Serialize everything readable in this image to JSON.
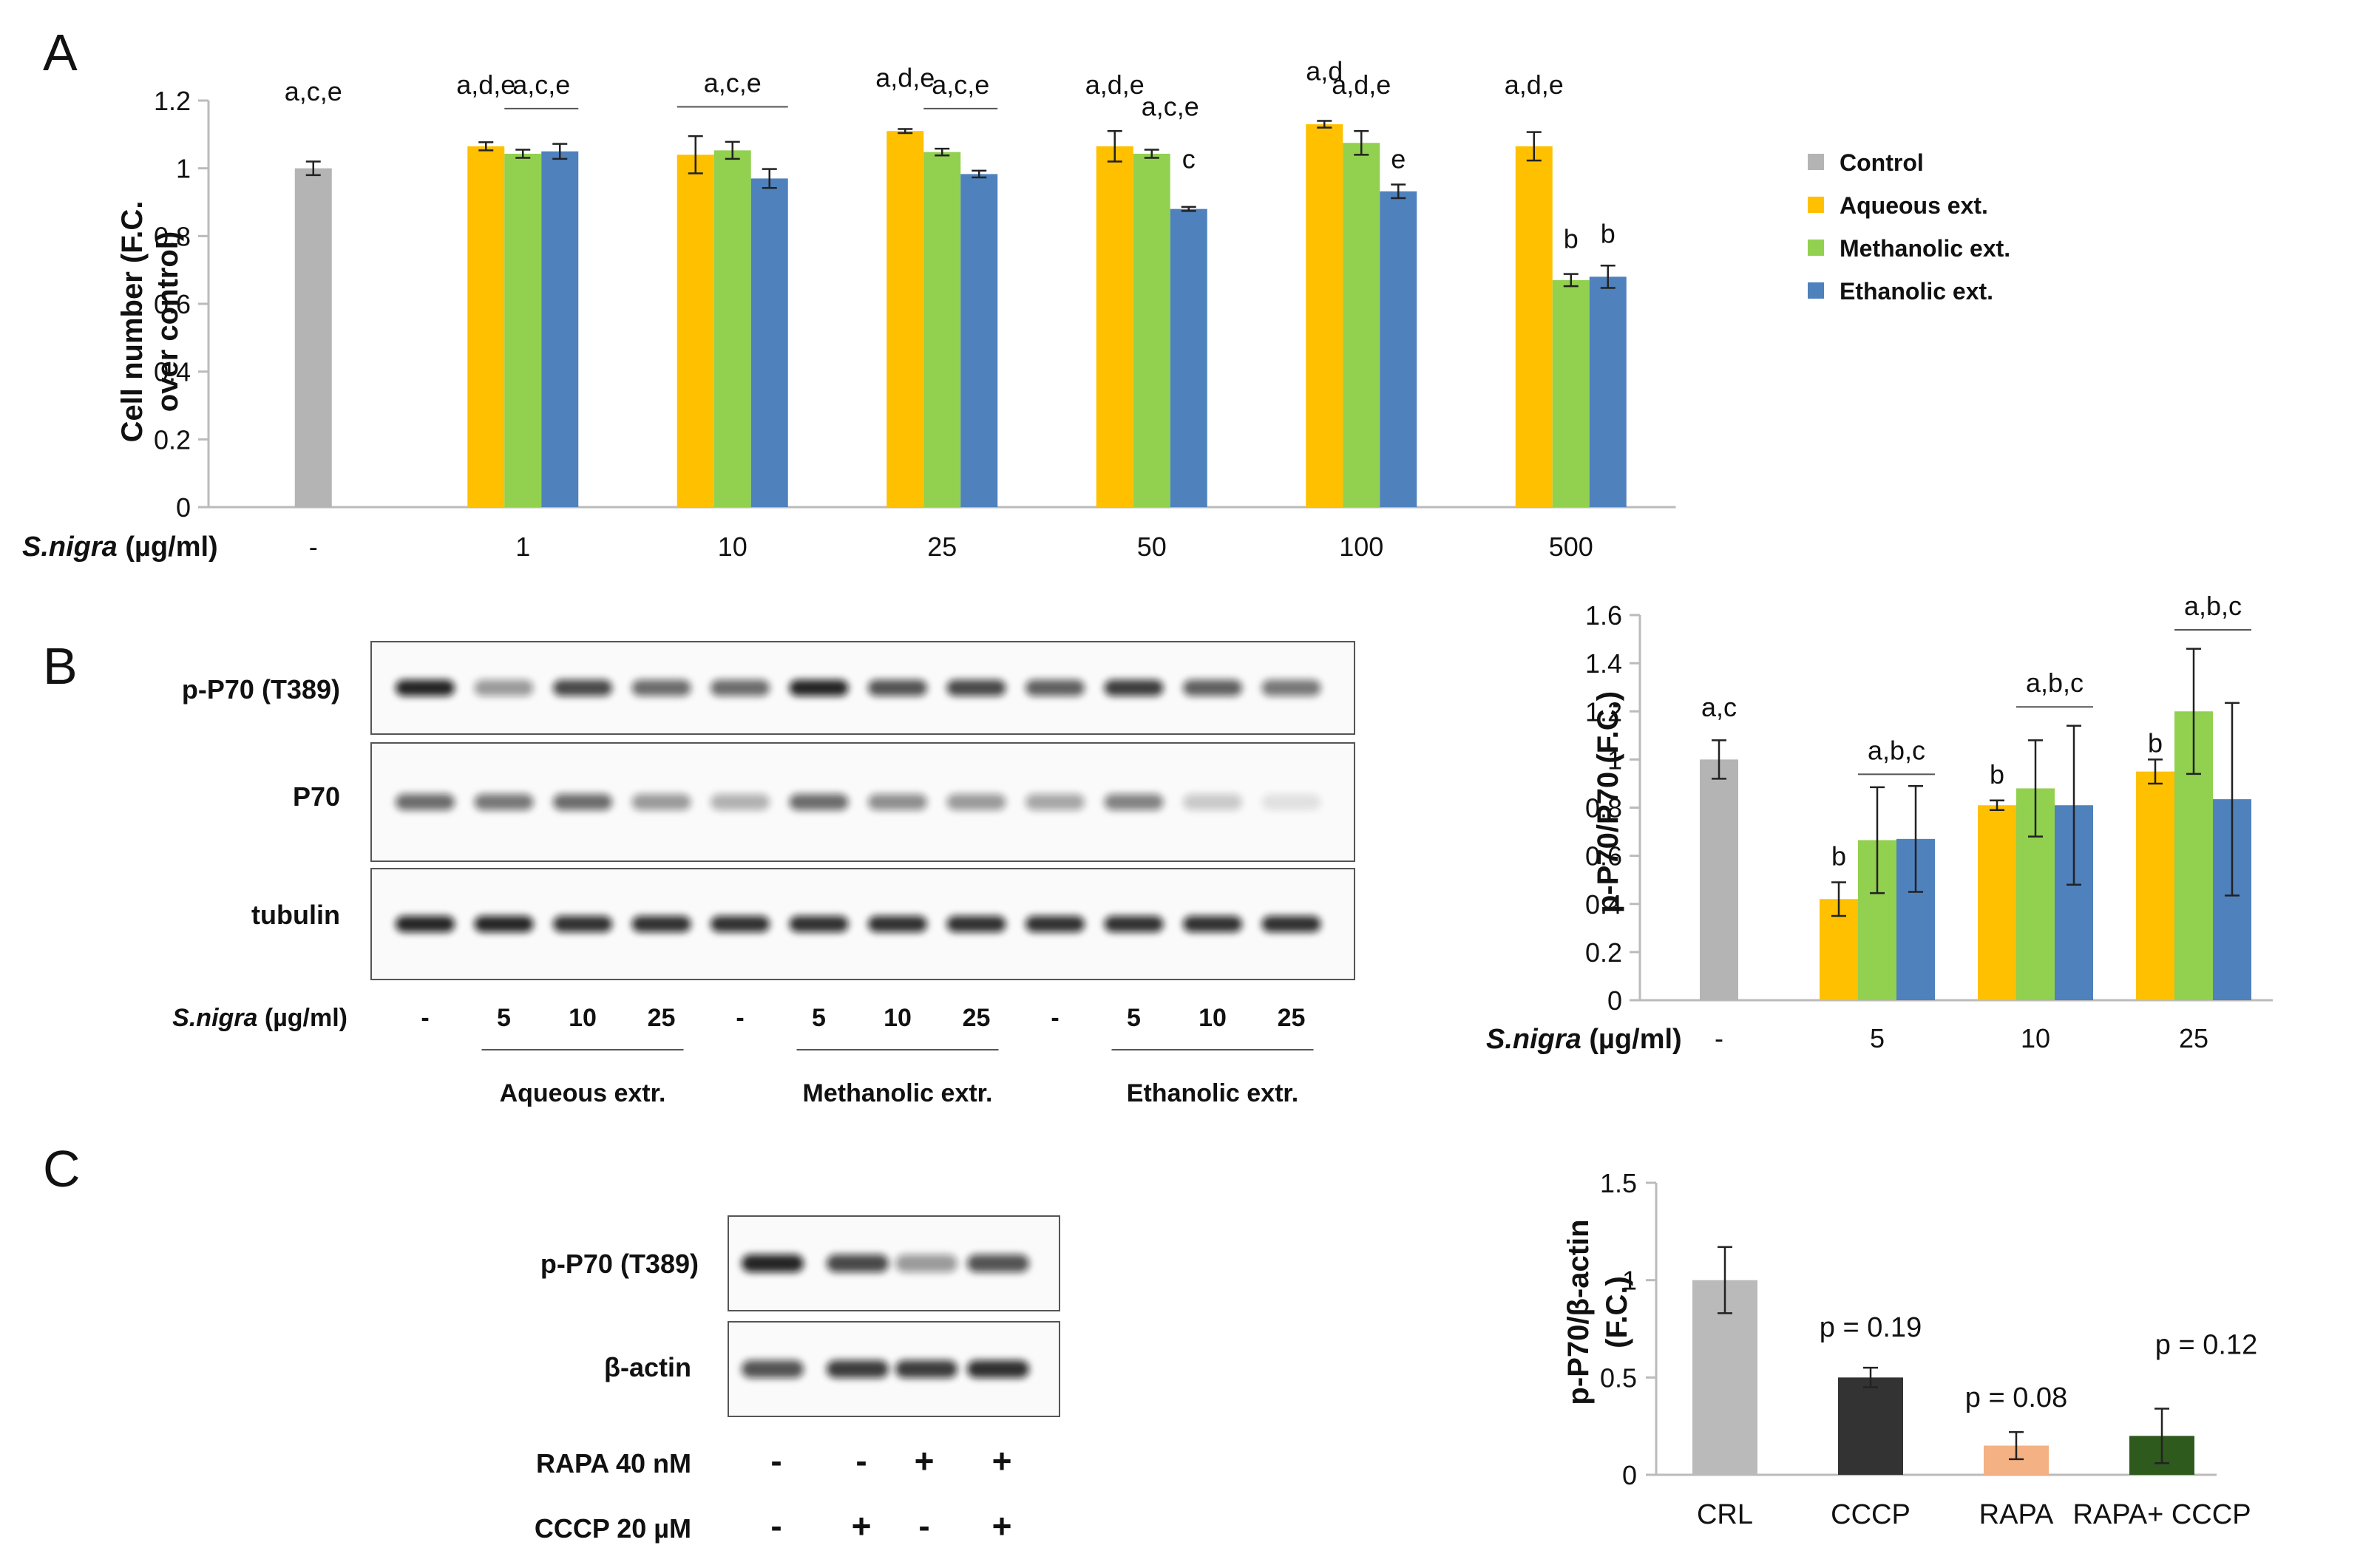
{
  "colors": {
    "control": "#b4b4b4",
    "aqueous": "#ffc000",
    "methanolic": "#92d050",
    "ethanolic": "#4f81bd",
    "crl": "#bababa",
    "cccp": "#333333",
    "rapa": "#f4b183",
    "rapa_cccp": "#2f5a1e"
  },
  "panels": {
    "a": "A",
    "b": "B",
    "c": "C"
  },
  "chart_data": [
    {
      "id": "A",
      "type": "bar",
      "ylabel_line1": "Cell number (F.C.",
      "ylabel_line2": "over control)",
      "xlabel_species": "S.nigra",
      "xlabel_unit": " (µg/ml)",
      "ylim": [
        0,
        1.2
      ],
      "yticks": [
        "0",
        "0.2",
        "0.4",
        "0.6",
        "0.8",
        "1",
        "1.2"
      ],
      "categories": [
        "-",
        "1",
        "10",
        "25",
        "50",
        "100",
        "500"
      ],
      "legend": [
        "Control",
        "Aqueous ext.",
        "Methanolic ext.",
        "Ethanolic ext."
      ],
      "series": [
        {
          "name": "Control",
          "color_key": "control",
          "values": [
            1.0,
            null,
            null,
            null,
            null,
            null,
            null
          ],
          "errors": [
            0.02,
            null,
            null,
            null,
            null,
            null,
            null
          ]
        },
        {
          "name": "Aqueous ext.",
          "color_key": "aqueous",
          "values": [
            null,
            1.065,
            1.04,
            1.11,
            1.065,
            1.13,
            1.065
          ],
          "errors": [
            null,
            0.012,
            0.055,
            0.006,
            0.045,
            0.01,
            0.042
          ]
        },
        {
          "name": "Methanolic ext.",
          "color_key": "methanolic",
          "values": [
            null,
            1.043,
            1.053,
            1.048,
            1.043,
            1.075,
            0.67
          ],
          "errors": [
            null,
            0.012,
            0.025,
            0.01,
            0.012,
            0.035,
            0.018
          ]
        },
        {
          "name": "Ethanolic ext.",
          "color_key": "ethanolic",
          "values": [
            null,
            1.05,
            0.97,
            0.983,
            0.88,
            0.932,
            0.68
          ],
          "errors": [
            null,
            0.022,
            0.028,
            0.01,
            0.006,
            0.02,
            0.033
          ]
        }
      ],
      "annotations": [
        {
          "text": "a,c,e",
          "cat": 0,
          "slot": "center",
          "y": 1.2
        },
        {
          "text": "a,d,e",
          "cat": 1,
          "slot": 0,
          "y": 1.22
        },
        {
          "text": "a,c,e",
          "cat": 1,
          "slot": "12",
          "y": 1.22,
          "line": true
        },
        {
          "text": "a,c,e",
          "cat": 2,
          "slot": "center",
          "y": 1.225,
          "line": true
        },
        {
          "text": "a,d,e",
          "cat": 3,
          "slot": 0,
          "y": 1.24
        },
        {
          "text": "a,c,e",
          "cat": 3,
          "slot": "12",
          "y": 1.22,
          "line": true
        },
        {
          "text": "a,d,e",
          "cat": 4,
          "slot": 0,
          "y": 1.22
        },
        {
          "text": "a,c,e",
          "cat": 4,
          "slot": "12",
          "y": 1.155
        },
        {
          "text": "c",
          "cat": 4,
          "slot": 2,
          "y": 1.0
        },
        {
          "text": "a,d",
          "cat": 5,
          "slot": 0,
          "y": 1.26
        },
        {
          "text": "a,d,e",
          "cat": 5,
          "slot": 1,
          "y": 1.22
        },
        {
          "text": "e",
          "cat": 5,
          "slot": 2,
          "y": 1.0
        },
        {
          "text": "a,d,e",
          "cat": 6,
          "slot": 0,
          "y": 1.22
        },
        {
          "text": "b",
          "cat": 6,
          "slot": 1,
          "y": 0.765
        },
        {
          "text": "b",
          "cat": 6,
          "slot": 2,
          "y": 0.78
        }
      ]
    },
    {
      "id": "B",
      "type": "bar",
      "ylabel": "p-P70/P70 (F.C.)",
      "xlabel_species": "S.nigra",
      "xlabel_unit": " (µg/ml)",
      "ylim": [
        0,
        1.6
      ],
      "yticks": [
        "0",
        "0.2",
        "0.4",
        "0.6",
        "0.8",
        "1",
        "1.2",
        "1.4",
        "1.6"
      ],
      "categories": [
        "-",
        "5",
        "10",
        "25"
      ],
      "series": [
        {
          "name": "Control",
          "color_key": "control",
          "values": [
            1.0,
            null,
            null,
            null
          ],
          "errors": [
            0.08,
            null,
            null,
            null
          ]
        },
        {
          "name": "Aqueous ext.",
          "color_key": "aqueous",
          "values": [
            null,
            0.42,
            0.81,
            0.95
          ],
          "errors": [
            null,
            0.07,
            0.02,
            0.05
          ]
        },
        {
          "name": "Methanolic ext.",
          "color_key": "methanolic",
          "values": [
            null,
            0.665,
            0.88,
            1.2
          ],
          "errors": [
            null,
            0.22,
            0.2,
            0.26
          ]
        },
        {
          "name": "Ethanolic ext.",
          "color_key": "ethanolic",
          "values": [
            null,
            0.67,
            0.81,
            0.835
          ],
          "errors": [
            null,
            0.22,
            0.33,
            0.4
          ]
        }
      ],
      "annotations": [
        {
          "text": "a,c",
          "cat": 0,
          "slot": "center",
          "y": 1.18
        },
        {
          "text": "b",
          "cat": 1,
          "slot": 0,
          "y": 0.56
        },
        {
          "text": "a,b,c",
          "cat": 1,
          "slot": "12",
          "y": 1.0,
          "line": true
        },
        {
          "text": "b",
          "cat": 2,
          "slot": 0,
          "y": 0.9
        },
        {
          "text": "a,b,c",
          "cat": 2,
          "slot": "12",
          "y": 1.28,
          "line": true
        },
        {
          "text": "b",
          "cat": 3,
          "slot": 0,
          "y": 1.03
        },
        {
          "text": "a,b,c",
          "cat": 3,
          "slot": "12",
          "y": 1.6,
          "line": true
        }
      ]
    },
    {
      "id": "C",
      "type": "bar",
      "ylabel_line1": "p-P70/β-actin",
      "ylabel_line2": "(F.C.)",
      "ylim": [
        0,
        1.5
      ],
      "yticks": [
        "0",
        "0.5",
        "1",
        "1.5"
      ],
      "categories": [
        "CRL",
        "CCCP",
        "RAPA",
        "RAPA+ CCCP"
      ],
      "color_keys": [
        "crl",
        "cccp",
        "rapa",
        "rapa_cccp"
      ],
      "values": [
        1.0,
        0.5,
        0.15,
        0.2
      ],
      "errors": [
        0.17,
        0.05,
        0.07,
        0.14
      ],
      "pvalues": [
        "",
        "p = 0.19",
        "p = 0.08",
        "p = 0.12"
      ],
      "pvalue_y": [
        null,
        0.71,
        0.35,
        0.62
      ]
    }
  ],
  "blot_b": {
    "labels": [
      "p-P70 (T389)",
      "P70",
      "tubulin"
    ],
    "lane_label_species": "S.nigra",
    "lane_label_unit": " (µg/ml)",
    "lanes": [
      "-",
      "5",
      "10",
      "25",
      "-",
      "5",
      "10",
      "25",
      "-",
      "5",
      "10",
      "25"
    ],
    "groups": [
      "Aqueous extr.",
      "Methanolic extr.",
      "Ethanolic extr."
    ],
    "band_intensity": [
      [
        0.9,
        0.4,
        0.75,
        0.6,
        0.6,
        0.9,
        0.7,
        0.75,
        0.65,
        0.8,
        0.65,
        0.55
      ],
      [
        0.6,
        0.55,
        0.6,
        0.4,
        0.3,
        0.6,
        0.45,
        0.4,
        0.35,
        0.5,
        0.2,
        0.1
      ],
      [
        0.9,
        0.9,
        0.85,
        0.85,
        0.85,
        0.85,
        0.85,
        0.85,
        0.85,
        0.85,
        0.85,
        0.85
      ]
    ]
  },
  "blot_c": {
    "labels": [
      "p-P70 (T389)",
      "β-actin"
    ],
    "band_intensity": [
      [
        0.9,
        0.75,
        0.4,
        0.7
      ],
      [
        0.7,
        0.8,
        0.8,
        0.85
      ]
    ],
    "rows": [
      {
        "label": "RAPA 40 nM",
        "marks": [
          "-",
          "-",
          "+",
          "+"
        ]
      },
      {
        "label": "CCCP 20 µM",
        "marks": [
          "-",
          "+",
          "-",
          "+"
        ]
      }
    ]
  }
}
